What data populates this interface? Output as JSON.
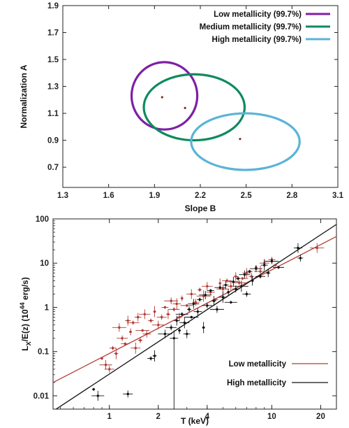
{
  "chart_data": [
    {
      "type": "scatter",
      "subtype": "confidence-ellipses",
      "xlabel": "Slope B",
      "ylabel": "Normalization A",
      "xlim": [
        1.3,
        3.1
      ],
      "ylim": [
        0.55,
        1.9
      ],
      "xticks": [
        "1.3",
        "1.6",
        "1.9",
        "2.2",
        "2.5",
        "2.8",
        "3.1"
      ],
      "yticks": [
        "0.7",
        "0.9",
        "1.1",
        "1.3",
        "1.5",
        "1.7",
        "1.9"
      ],
      "legend_position": "top-right",
      "series": [
        {
          "name": "Low metallicity (99.7%)",
          "color": "#7e1fa6",
          "center": [
            1.95,
            1.22
          ],
          "x_range": [
            1.75,
            2.18
          ],
          "y_range": [
            0.98,
            1.48
          ]
        },
        {
          "name": "Medium metallicity (99.7%)",
          "color": "#0f8a5f",
          "center": [
            2.1,
            1.14
          ],
          "x_range": [
            1.83,
            2.49
          ],
          "y_range": [
            0.9,
            1.39
          ]
        },
        {
          "name": "High metallicity (99.7%)",
          "color": "#5ab4d6",
          "center": [
            2.46,
            0.91
          ],
          "x_range": [
            2.14,
            2.85
          ],
          "y_range": [
            0.68,
            1.1
          ]
        }
      ]
    },
    {
      "type": "scatter",
      "xlabel": "T (keV)",
      "ylabel": "Lₓ/E(z) (10⁴⁴ erg/s)",
      "ylabel_main": "L",
      "ylabel_sub": "X",
      "ylabel_mid": "/E(z) (10",
      "ylabel_sup": "44",
      "ylabel_end": " erg/s)",
      "xscale": "log",
      "yscale": "log",
      "xlim": [
        0.45,
        25
      ],
      "ylim": [
        0.005,
        100
      ],
      "xticks": [
        "1",
        "2",
        "4",
        "10",
        "20"
      ],
      "yticks": [
        "0.01",
        "0.1",
        "1",
        "10",
        "100"
      ],
      "legend_position": "bottom-right",
      "series": [
        {
          "name": "Low metallicity",
          "color": "#b23a32",
          "fit_line": {
            "x": [
              0.45,
              25
            ],
            "y": [
              0.02,
              40
            ]
          },
          "points": [
            [
              0.9,
              0.07
            ],
            [
              0.95,
              0.05
            ],
            [
              1.0,
              0.04
            ],
            [
              1.05,
              0.12
            ],
            [
              1.1,
              0.09
            ],
            [
              1.15,
              0.35
            ],
            [
              1.2,
              0.2
            ],
            [
              1.25,
              0.15
            ],
            [
              1.3,
              0.5
            ],
            [
              1.35,
              0.28
            ],
            [
              1.4,
              0.45
            ],
            [
              1.45,
              0.12
            ],
            [
              1.5,
              0.6
            ],
            [
              1.55,
              0.18
            ],
            [
              1.6,
              0.3
            ],
            [
              1.65,
              0.7
            ],
            [
              1.7,
              0.25
            ],
            [
              1.8,
              0.5
            ],
            [
              1.9,
              0.8
            ],
            [
              2.0,
              0.4
            ],
            [
              2.1,
              0.6
            ],
            [
              2.2,
              1.0
            ],
            [
              2.3,
              0.7
            ],
            [
              2.4,
              1.4
            ],
            [
              2.5,
              0.9
            ],
            [
              2.6,
              1.2
            ],
            [
              2.7,
              0.6
            ],
            [
              2.8,
              1.6
            ],
            [
              3.0,
              1.1
            ],
            [
              3.2,
              2.0
            ],
            [
              3.4,
              1.3
            ],
            [
              3.6,
              2.5
            ],
            [
              3.8,
              1.8
            ],
            [
              4.0,
              3.0
            ],
            [
              4.2,
              2.2
            ],
            [
              4.5,
              1.5
            ],
            [
              4.8,
              3.5
            ],
            [
              5.0,
              2.6
            ],
            [
              5.3,
              4.0
            ],
            [
              5.6,
              3.0
            ],
            [
              6.0,
              5.0
            ],
            [
              6.3,
              3.6
            ],
            [
              6.6,
              4.5
            ],
            [
              7.0,
              6.0
            ],
            [
              7.5,
              5.0
            ],
            [
              8.0,
              8.0
            ],
            [
              8.5,
              6.5
            ],
            [
              9.0,
              10.0
            ],
            [
              10.0,
              12.0
            ],
            [
              10.5,
              9.0
            ],
            [
              19.0,
              22.0
            ]
          ]
        },
        {
          "name": "High metallicity",
          "color": "#111111",
          "fit_line": {
            "x": [
              0.45,
              25
            ],
            "y": [
              0.0045,
              75
            ]
          },
          "points": [
            [
              0.8,
              0.014
            ],
            [
              0.85,
              0.01
            ],
            [
              1.3,
              0.011
            ],
            [
              1.8,
              0.07
            ],
            [
              1.9,
              0.08
            ],
            [
              2.2,
              0.25
            ],
            [
              2.4,
              0.35
            ],
            [
              2.5,
              0.2
            ],
            [
              2.6,
              0.5
            ],
            [
              2.7,
              0.3
            ],
            [
              2.8,
              0.7
            ],
            [
              2.9,
              0.45
            ],
            [
              3.0,
              0.25
            ],
            [
              3.1,
              0.9
            ],
            [
              3.2,
              0.6
            ],
            [
              3.3,
              1.2
            ],
            [
              3.5,
              0.8
            ],
            [
              3.6,
              1.5
            ],
            [
              3.8,
              0.35
            ],
            [
              3.9,
              1.9
            ],
            [
              4.0,
              1.1
            ],
            [
              4.2,
              2.4
            ],
            [
              4.4,
              1.4
            ],
            [
              4.6,
              0.9
            ],
            [
              4.8,
              2.8
            ],
            [
              5.0,
              1.7
            ],
            [
              5.2,
              3.2
            ],
            [
              5.4,
              2.2
            ],
            [
              5.6,
              1.3
            ],
            [
              5.8,
              3.8
            ],
            [
              6.0,
              2.6
            ],
            [
              6.2,
              4.5
            ],
            [
              6.5,
              3.0
            ],
            [
              6.8,
              5.5
            ],
            [
              7.0,
              2.0
            ],
            [
              7.3,
              6.5
            ],
            [
              7.6,
              4.0
            ],
            [
              8.0,
              7.5
            ],
            [
              8.5,
              5.0
            ],
            [
              9.0,
              9.0
            ],
            [
              9.5,
              6.0
            ],
            [
              10.0,
              11.0
            ],
            [
              11.0,
              8.0
            ],
            [
              14.5,
              22.0
            ],
            [
              15.0,
              13.0
            ]
          ]
        }
      ]
    }
  ]
}
